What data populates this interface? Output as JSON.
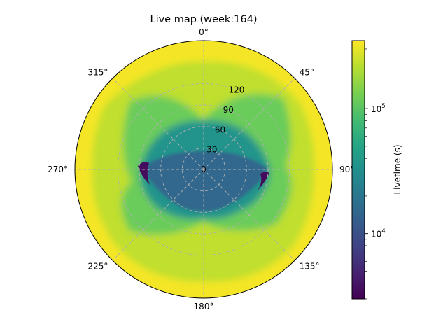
{
  "chart_data": {
    "type": "heatmap",
    "projection": "polar",
    "title": "Live map (week:164)",
    "theta_zero_location": "N",
    "theta_direction": "clockwise",
    "theta_ticks": [
      {
        "deg": 0,
        "label": "0°"
      },
      {
        "deg": 45,
        "label": "45°"
      },
      {
        "deg": 90,
        "label": "90°"
      },
      {
        "deg": 135,
        "label": "135°"
      },
      {
        "deg": 180,
        "label": "180°"
      },
      {
        "deg": 225,
        "label": "225°"
      },
      {
        "deg": 270,
        "label": "270°"
      },
      {
        "deg": 315,
        "label": "315°"
      }
    ],
    "radial_ticks": [
      {
        "value": 0,
        "label": "0"
      },
      {
        "value": 30,
        "label": "30"
      },
      {
        "value": 60,
        "label": "60"
      },
      {
        "value": 90,
        "label": "90"
      },
      {
        "value": 120,
        "label": "120"
      }
    ],
    "rlim": [
      0,
      180
    ],
    "radial_label_angle_deg": 22.5,
    "grid": true,
    "colormap": "viridis",
    "colorbar": {
      "label": "Livetime (s)",
      "scale": "log",
      "range": [
        3000,
        350000
      ],
      "ticks": [
        {
          "value": 10000,
          "label": "10^4"
        },
        {
          "value": 100000,
          "label": "10^5"
        }
      ],
      "location": "right"
    },
    "regions": [
      {
        "name": "outer",
        "value": 330000
      },
      {
        "name": "mid-ring",
        "value": 230000
      },
      {
        "name": "side-lobes",
        "value": 120000
      },
      {
        "name": "transition",
        "value": 35000
      },
      {
        "name": "core",
        "value": 15000
      },
      {
        "name": "edge-spots",
        "value": 3500
      }
    ]
  }
}
